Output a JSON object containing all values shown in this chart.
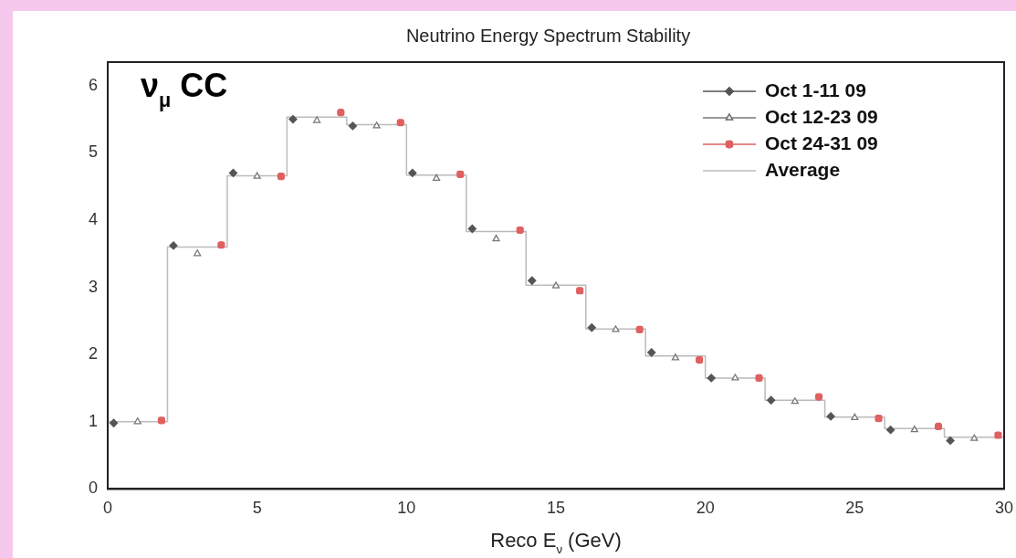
{
  "chart_data": {
    "type": "scatter",
    "title": "Neutrino Energy Spectrum Stability",
    "xlabel": "Reco E$_{ν}$ (GeV)",
    "xlim": [
      0,
      30
    ],
    "xticks": [
      0,
      5,
      10,
      15,
      20,
      25,
      30
    ],
    "ylim": [
      0,
      6.35
    ],
    "yticks": [
      0,
      1,
      2,
      3,
      4,
      5,
      6
    ],
    "grid": false,
    "legend": "top right",
    "line_style": "solid",
    "annotations": [
      "ν$_{μ}$ CC"
    ],
    "series": [
      {
        "name": "Oct 1-11 09",
        "type": "scatter",
        "marker": "diamond",
        "color": "#555555",
        "x": [
          0.2,
          2.2,
          4.2,
          6.2,
          8.2,
          10.2,
          12.2,
          14.2,
          16.2,
          18.2,
          20.2,
          22.2,
          24.2,
          26.2,
          28.2
        ],
        "values": [
          0.98,
          3.62,
          4.7,
          5.5,
          5.4,
          4.7,
          3.87,
          3.1,
          2.4,
          2.03,
          1.65,
          1.32,
          1.08,
          0.88,
          0.72
        ]
      },
      {
        "name": "Oct 12-23 09",
        "type": "scatter",
        "marker": "triangle",
        "color": "#777777",
        "x": [
          1,
          3,
          5,
          7,
          9,
          11,
          13,
          15,
          17,
          19,
          21,
          23,
          25,
          27,
          29
        ],
        "values": [
          1.0,
          3.5,
          4.65,
          5.48,
          5.4,
          4.62,
          3.72,
          3.02,
          2.37,
          1.95,
          1.65,
          1.3,
          1.06,
          0.88,
          0.75
        ]
      },
      {
        "name": "Oct 24-31 09",
        "type": "scatter",
        "marker": "square",
        "color": "#e06060",
        "x": [
          1.8,
          3.8,
          5.8,
          7.8,
          9.8,
          11.8,
          13.8,
          15.8,
          17.8,
          19.8,
          21.8,
          23.8,
          25.8,
          27.8,
          29.8
        ],
        "values": [
          1.02,
          3.63,
          4.65,
          5.6,
          5.45,
          4.68,
          3.85,
          2.95,
          2.37,
          1.92,
          1.65,
          1.37,
          1.05,
          0.93,
          0.8
        ]
      },
      {
        "name": "Average",
        "type": "histogram",
        "marker": "none",
        "color": "#bbbbbb",
        "bins": [
          0,
          2,
          4,
          6,
          8,
          10,
          12,
          14,
          16,
          18,
          20,
          22,
          24,
          26,
          28,
          30
        ],
        "values": [
          1.0,
          3.6,
          4.66,
          5.53,
          5.42,
          4.67,
          3.83,
          3.03,
          2.38,
          1.98,
          1.65,
          1.32,
          1.07,
          0.9,
          0.77
        ]
      }
    ]
  }
}
